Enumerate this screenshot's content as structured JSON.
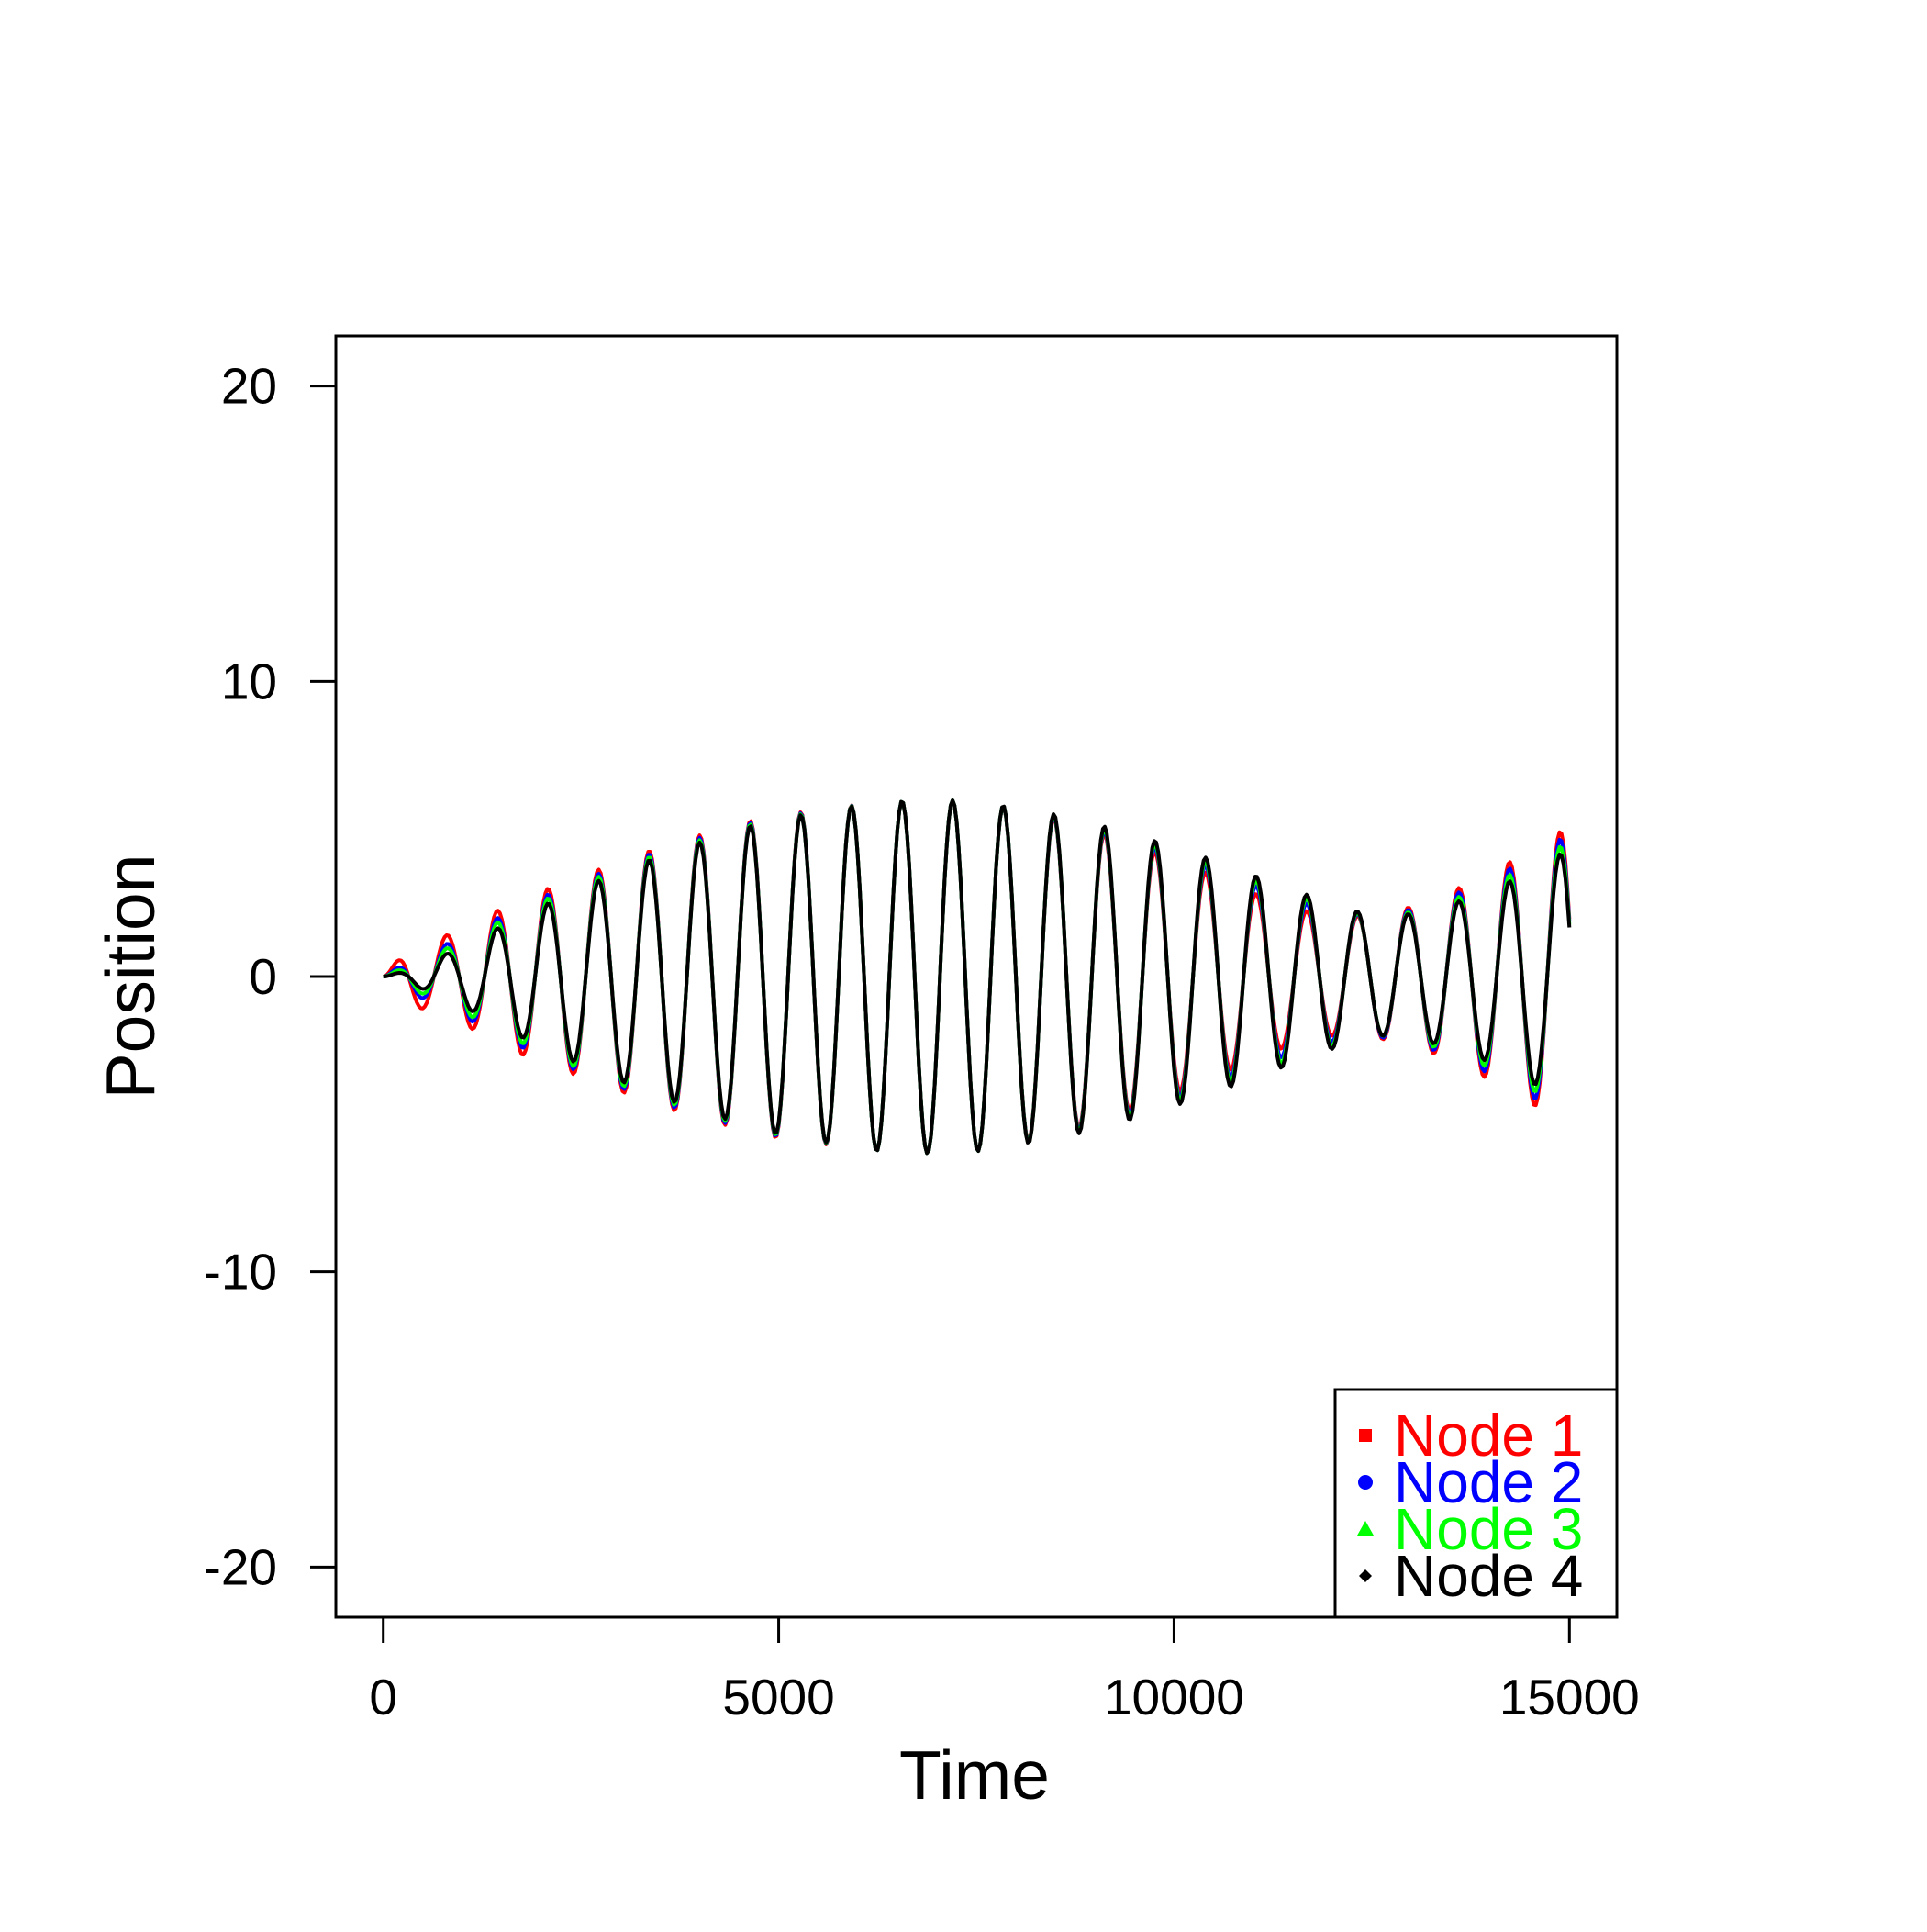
{
  "chart_data": {
    "type": "line",
    "title": "",
    "xlabel": "Time",
    "ylabel": "Position",
    "xlim": [
      -600,
      15600
    ],
    "ylim": [
      -21.7,
      21.7
    ],
    "xticks": [
      0,
      5000,
      10000,
      15000
    ],
    "xtick_labels": [
      "0",
      "5000",
      "10000",
      "15000"
    ],
    "yticks": [
      -20,
      -10,
      0,
      10,
      20
    ],
    "ytick_labels": [
      "-20",
      "-10",
      "0",
      "10",
      "20"
    ],
    "grid": false,
    "legend_position": "bottom-right",
    "x_range": [
      0,
      15000
    ],
    "sample_step": 25,
    "series": [
      {
        "name": "Node 1",
        "color": "#FF0000",
        "marker": "square",
        "envelope_x": [
          0,
          300,
          1000,
          1700,
          2500,
          3500,
          4800,
          6200,
          7000,
          7600,
          8600,
          9600,
          10600,
          11400,
          12000,
          12600,
          13200,
          14000,
          14700,
          15000
        ],
        "envelope_y": [
          0.0,
          0.9,
          1.6,
          2.6,
          3.4,
          4.4,
          5.4,
          5.9,
          6.0,
          5.9,
          5.3,
          4.4,
          3.3,
          2.4,
          2.0,
          2.1,
          2.5,
          3.5,
          4.6,
          5.1
        ]
      },
      {
        "name": "Node 2",
        "color": "#0000FF",
        "marker": "circle",
        "envelope_x": [
          0,
          300,
          1000,
          1700,
          2500,
          3500,
          4800,
          6200,
          7000,
          7600,
          8600,
          9600,
          10600,
          11400,
          12000,
          12600,
          13200,
          14000,
          14700,
          15000
        ],
        "envelope_y": [
          0.0,
          0.5,
          1.35,
          2.35,
          3.25,
          4.3,
          5.35,
          5.9,
          6.0,
          5.9,
          5.35,
          4.55,
          3.55,
          2.7,
          2.2,
          2.05,
          2.4,
          3.3,
          4.35,
          4.85
        ]
      },
      {
        "name": "Node 3",
        "color": "#00FF00",
        "marker": "triangle",
        "envelope_x": [
          0,
          300,
          1000,
          1700,
          2500,
          3500,
          4800,
          6200,
          7000,
          7600,
          8600,
          9600,
          10600,
          11400,
          12000,
          12600,
          13200,
          14000,
          14700,
          15000
        ],
        "envelope_y": [
          0.0,
          0.35,
          1.2,
          2.2,
          3.15,
          4.2,
          5.3,
          5.9,
          6.0,
          5.9,
          5.4,
          4.65,
          3.7,
          2.9,
          2.35,
          2.0,
          2.3,
          3.1,
          4.1,
          4.6
        ]
      },
      {
        "name": "Node 4",
        "color": "#000000",
        "marker": "diamond",
        "envelope_x": [
          0,
          300,
          1000,
          1700,
          2500,
          3500,
          4800,
          6200,
          7000,
          7600,
          8600,
          9600,
          10600,
          11400,
          12000,
          12600,
          13200,
          14000,
          14700,
          15000
        ],
        "envelope_y": [
          0.0,
          0.2,
          1.0,
          2.0,
          3.0,
          4.1,
          5.25,
          5.9,
          6.0,
          5.9,
          5.45,
          4.75,
          3.85,
          3.05,
          2.45,
          2.0,
          2.2,
          2.9,
          3.85,
          4.35
        ]
      }
    ]
  }
}
